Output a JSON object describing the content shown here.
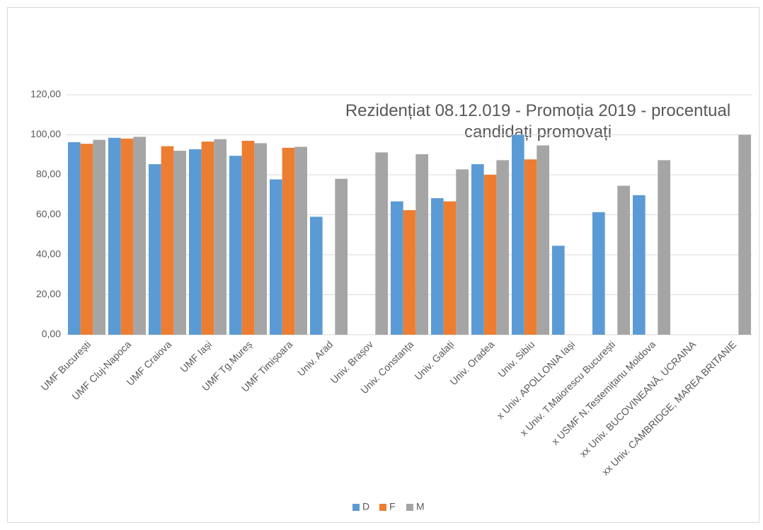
{
  "chart_data": {
    "type": "bar",
    "title": "Rezidențiat 08.12.019 - Promoția 2019 - procentual candidați promovați",
    "categories": [
      "UMF București",
      "UMF Cluj-Napoca",
      "UMF Craiova",
      "UMF Iași",
      "UMF Tg.Mureș",
      "UMF Timișoara",
      "Univ. Arad",
      "Univ. Brașov",
      "Univ. Constanța",
      "Univ. Galați",
      "Univ. Oradea",
      "Univ. Sibiu",
      "x Univ. APOLLONIA Iași",
      "x Univ. T.Maiorescu București",
      "x USMF N.Testemițanu Moldova",
      "xx Univ. BUCOVINEANĂ, UCRAINA",
      "xx Univ. CAMBRIDGE, MAREA BRITANIE"
    ],
    "series": [
      {
        "name": "D",
        "color": "#5b9bd5",
        "values": [
          96.3,
          98.5,
          85.3,
          92.8,
          89.5,
          77.7,
          59,
          null,
          66.7,
          68.3,
          85.3,
          100,
          44.5,
          61.3,
          69.8,
          null,
          null
        ]
      },
      {
        "name": "F",
        "color": "#ed7d31",
        "values": [
          95.5,
          98.1,
          94.3,
          96.6,
          97,
          93.5,
          null,
          null,
          62.3,
          66.7,
          80,
          87.7,
          null,
          null,
          null,
          null,
          null
        ]
      },
      {
        "name": "M",
        "color": "#a5a5a5",
        "values": [
          97.5,
          99,
          92,
          97.8,
          95.8,
          94,
          78,
          91.2,
          90.3,
          82.7,
          87.3,
          94.7,
          null,
          74.5,
          87.3,
          null,
          100
        ]
      }
    ],
    "ylim": [
      0,
      120
    ],
    "yticks": [
      {
        "value": 0,
        "label": "0,00"
      },
      {
        "value": 20,
        "label": "20,00"
      },
      {
        "value": 40,
        "label": "40,00"
      },
      {
        "value": 60,
        "label": "60,00"
      },
      {
        "value": 80,
        "label": "80,00"
      },
      {
        "value": 100,
        "label": "100,00"
      },
      {
        "value": 120,
        "label": "120,00"
      }
    ],
    "grid": true,
    "legend": "bottom"
  }
}
